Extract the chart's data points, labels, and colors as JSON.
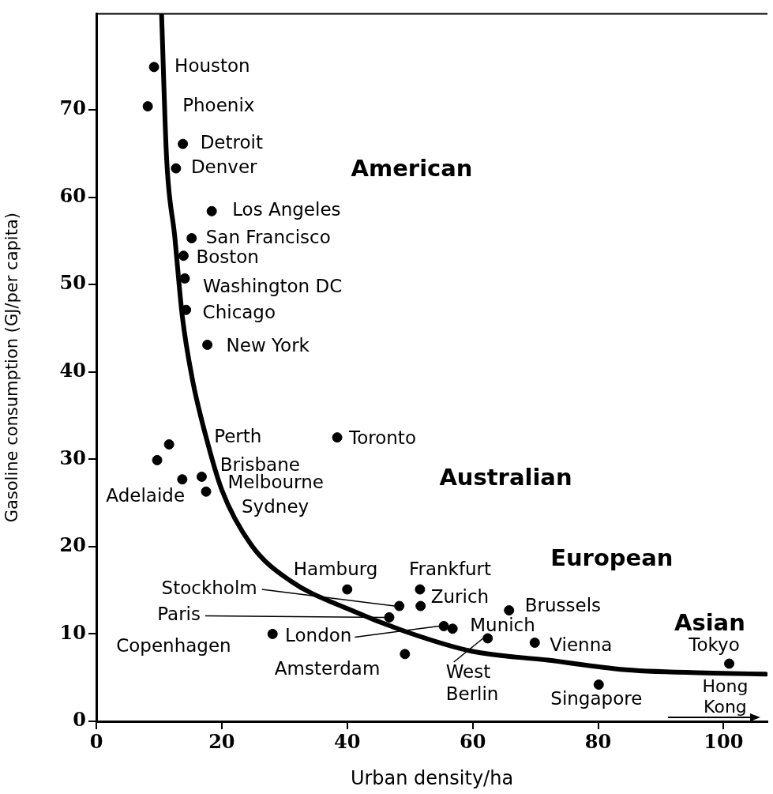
{
  "chart_data": {
    "type": "scatter",
    "xlabel": "Urban density/ha",
    "ylabel": "Gasoline consumption (GJ/per capita)",
    "xlim": [
      0,
      107
    ],
    "xticks": [
      0,
      20,
      40,
      60,
      80,
      100
    ],
    "ylim": [
      0,
      81
    ],
    "yticks": [
      0,
      10,
      20,
      30,
      40,
      50,
      60,
      70
    ],
    "grid": false,
    "legend": false,
    "marker": "circle",
    "series": [
      {
        "color": "#000000",
        "x": [
          9.2,
          8.2,
          13.8,
          12.7,
          18.4,
          15.2,
          13.9,
          14.1,
          14.3,
          17.7,
          11.6,
          9.7,
          16.8,
          17.5,
          13.7,
          38.4,
          40.0,
          51.6,
          51.7,
          48.3,
          46.7,
          55.4,
          56.8,
          62.4,
          28.1,
          49.2,
          65.8,
          69.9,
          80.1,
          100.9
        ],
        "values": [
          74.9,
          70.4,
          66.1,
          63.3,
          58.4,
          55.3,
          53.3,
          50.7,
          47.1,
          43.1,
          31.7,
          29.9,
          28.0,
          26.3,
          27.7,
          32.5,
          15.1,
          15.1,
          13.2,
          13.2,
          11.9,
          10.9,
          10.6,
          9.5,
          10.0,
          7.7,
          12.7,
          9.0,
          4.2,
          6.6
        ]
      },
      {
        "type": "line",
        "color": "#000000",
        "marker": "none",
        "x": [
          10.4,
          11.2,
          12.5,
          13.7,
          15.3,
          17.4,
          20.0,
          24.7,
          30.9,
          40.0,
          49.6,
          60.0,
          72.0,
          84.4,
          100.0,
          106.7
        ],
        "values": [
          81.0,
          64.5,
          55.5,
          46.4,
          39.2,
          32.8,
          26.5,
          20.2,
          16.1,
          12.9,
          10.2,
          8.0,
          7.0,
          5.9,
          5.5,
          5.4
        ]
      }
    ],
    "annotations": [
      {
        "text": "Houston",
        "x": 9.2,
        "y": 74.9
      },
      {
        "text": "Phoenix",
        "x": 8.2,
        "y": 70.4
      },
      {
        "text": "Detroit",
        "x": 13.8,
        "y": 66.1
      },
      {
        "text": "Denver",
        "x": 12.7,
        "y": 63.3
      },
      {
        "text": "Los Angeles",
        "x": 18.4,
        "y": 58.4
      },
      {
        "text": "San Francisco",
        "x": 15.2,
        "y": 55.3
      },
      {
        "text": "Boston",
        "x": 13.9,
        "y": 53.3
      },
      {
        "text": "Washington DC",
        "x": 14.1,
        "y": 50.7
      },
      {
        "text": "Chicago",
        "x": 14.3,
        "y": 47.1
      },
      {
        "text": "New York",
        "x": 17.7,
        "y": 43.1
      },
      {
        "text": "Perth",
        "x": 11.6,
        "y": 31.7
      },
      {
        "text": "Brisbane",
        "x": 13.7,
        "y": 27.7
      },
      {
        "text": "Melbourne",
        "x": 16.8,
        "y": 28.0
      },
      {
        "text": "Sydney",
        "x": 17.5,
        "y": 26.3
      },
      {
        "text": "Adelaide",
        "x": 9.7,
        "y": 29.9
      },
      {
        "text": "Toronto",
        "x": 38.4,
        "y": 32.5
      },
      {
        "text": "Hamburg",
        "x": 40.0,
        "y": 15.1
      },
      {
        "text": "Frankfurt",
        "x": 51.6,
        "y": 15.1
      },
      {
        "text": "Zurich",
        "x": 51.7,
        "y": 13.2
      },
      {
        "text": "Stockholm",
        "x": 48.3,
        "y": 13.2
      },
      {
        "text": "Paris",
        "x": 46.7,
        "y": 11.9
      },
      {
        "text": "London",
        "x": 55.4,
        "y": 10.9
      },
      {
        "text": "Munich",
        "x": 56.8,
        "y": 10.6
      },
      {
        "text": "West Berlin",
        "x": 62.4,
        "y": 9.5
      },
      {
        "text": "Copenhagen",
        "x": 28.1,
        "y": 10.0
      },
      {
        "text": "Amsterdam",
        "x": 49.2,
        "y": 7.7
      },
      {
        "text": "Brussels",
        "x": 65.8,
        "y": 12.7
      },
      {
        "text": "Vienna",
        "x": 69.9,
        "y": 9.0
      },
      {
        "text": "Singapore",
        "x": 80.1,
        "y": 4.2
      },
      {
        "text": "Tokyo",
        "x": 100.9,
        "y": 6.6
      },
      "American",
      "Australian",
      "European",
      "Asian",
      "Hong Kong"
    ]
  }
}
